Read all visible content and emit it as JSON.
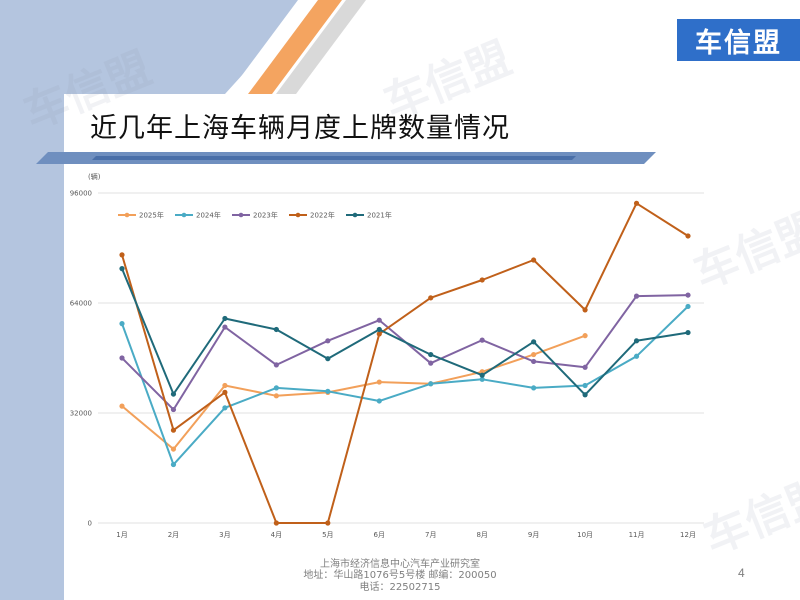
{
  "logo": {
    "text": "车信盟"
  },
  "watermark_text": "车信盟",
  "page_title": "近几年上海车辆月度上牌数量情况",
  "footer": {
    "org": "上海市经济信息中心汽车产业研究室",
    "address": "地址：华山路1076号5号楼    邮编：200050",
    "phone": "电话：22502715"
  },
  "page_number": "4",
  "colors": {
    "left_band": "#b4c5df",
    "title_rule": "#6f8fbf",
    "accent_orange": "#f4a460"
  },
  "chart_data": {
    "type": "line",
    "unit_label": "(辆)",
    "categories": [
      "1月",
      "2月",
      "3月",
      "4月",
      "5月",
      "6月",
      "7月",
      "8月",
      "9月",
      "10月",
      "11月",
      "12月"
    ],
    "ylim": [
      0,
      96000
    ],
    "yticks": [
      0,
      32000,
      64000,
      96000
    ],
    "ytick_labels": [
      "0",
      "32000",
      "64000",
      "96000"
    ],
    "grid": true,
    "legend_position": "top-left",
    "series": [
      {
        "name": "2025年",
        "color": "#f2a05a",
        "values": [
          34000,
          21500,
          40000,
          37000,
          38000,
          41000,
          40500,
          44000,
          49000,
          54500,
          null,
          null
        ]
      },
      {
        "name": "2024年",
        "color": "#4aabc5",
        "values": [
          58000,
          17000,
          33500,
          39300,
          38300,
          35500,
          40500,
          41800,
          39300,
          40000,
          48500,
          63000
        ]
      },
      {
        "name": "2023年",
        "color": "#8064a2",
        "values": [
          48000,
          33000,
          57000,
          46000,
          53000,
          59000,
          46500,
          53200,
          47000,
          45300,
          66000,
          66300
        ]
      },
      {
        "name": "2022年",
        "color": "#c0601a",
        "values": [
          78000,
          27000,
          38000,
          0,
          0,
          55000,
          65500,
          70700,
          76500,
          62000,
          93000,
          83500
        ]
      },
      {
        "name": "2021年",
        "color": "#1f6a7a",
        "values": [
          74000,
          37500,
          59500,
          56300,
          47800,
          56300,
          49000,
          43000,
          52700,
          37300,
          53000,
          55400
        ]
      }
    ]
  }
}
